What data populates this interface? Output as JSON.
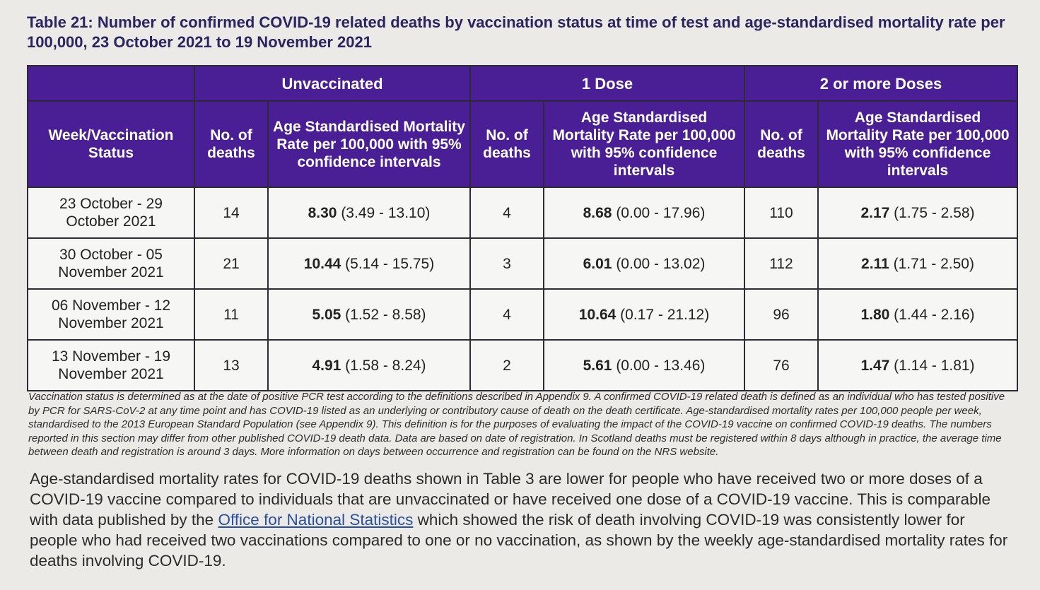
{
  "title": "Table 21: Number of confirmed COVID-19 related deaths by vaccination status at time of test and age-standardised mortality rate per 100,000, 23 October 2021 to 19 November 2021",
  "table": {
    "groups": [
      "Unvaccinated",
      "1 Dose",
      "2 or more Doses"
    ],
    "columns": {
      "week": "Week/Vaccination Status",
      "deaths": "No. of deaths",
      "rate": "Age Standardised Mortality Rate per 100,000 with 95% confidence intervals"
    },
    "rows": [
      {
        "week": "23 October - 29 October 2021",
        "unvac_deaths": "14",
        "unvac_rate": "8.30",
        "unvac_ci": " (3.49 - 13.10)",
        "dose1_deaths": "4",
        "dose1_rate": "8.68",
        "dose1_ci": " (0.00 - 17.96)",
        "dose2_deaths": "110",
        "dose2_rate": "2.17",
        "dose2_ci": " (1.75 - 2.58)"
      },
      {
        "week": "30 October - 05 November 2021",
        "unvac_deaths": "21",
        "unvac_rate": "10.44",
        "unvac_ci": " (5.14 - 15.75)",
        "dose1_deaths": "3",
        "dose1_rate": "6.01",
        "dose1_ci": " (0.00 - 13.02)",
        "dose2_deaths": "112",
        "dose2_rate": "2.11",
        "dose2_ci": " (1.71 - 2.50)"
      },
      {
        "week": "06 November - 12 November 2021",
        "unvac_deaths": "11",
        "unvac_rate": "5.05",
        "unvac_ci": " (1.52 - 8.58)",
        "dose1_deaths": "4",
        "dose1_rate": "10.64",
        "dose1_ci": " (0.17 - 21.12)",
        "dose2_deaths": "96",
        "dose2_rate": "1.80",
        "dose2_ci": " (1.44 - 2.16)"
      },
      {
        "week": "13 November - 19 November 2021",
        "unvac_deaths": "13",
        "unvac_rate": "4.91",
        "unvac_ci": " (1.58 - 8.24)",
        "dose1_deaths": "2",
        "dose1_rate": "5.61",
        "dose1_ci": " (0.00 - 13.46)",
        "dose2_deaths": "76",
        "dose2_rate": "1.47",
        "dose2_ci": " (1.14 - 1.81)"
      }
    ]
  },
  "footnote": "Vaccination status is determined as at the date of positive PCR test according to the definitions described in Appendix 9. A confirmed COVID-19 related death is defined as an individual who has tested positive by PCR for SARS-CoV-2 at any time point and has COVID-19 listed as an underlying or contributory cause of death on the death certificate. Age-standardised mortality rates per 100,000 people per week, standardised to the 2013 European Standard Population (see Appendix 9). This definition is for the purposes of evaluating the impact of the COVID-19 vaccine on confirmed COVID-19 deaths. The numbers reported in this section may differ from other published COVID-19 death data. Data are based on date of registration. In Scotland deaths must be registered within 8 days although in practice, the average time between death and registration is around 3 days. More information on days between occurrence and registration can be found on the NRS website.",
  "paragraph": {
    "before_link": "Age-standardised mortality rates for COVID-19 deaths shown in Table 3 are lower for people who have received two or more doses of a COVID-19 vaccine compared to individuals that are unvaccinated or have received one dose of a COVID-19 vaccine. This is comparable with data published by the ",
    "link_text": "Office for National Statistics",
    "after_link": " which showed the risk of death involving COVID-19 was consistently lower for people who had received two vaccinations compared to one or no vaccination, as shown by the weekly age-standardised mortality rates for deaths involving COVID-19."
  },
  "colors": {
    "header_bg": "#4a1f96",
    "title_text": "#2a2560",
    "link": "#2a4f9c"
  }
}
